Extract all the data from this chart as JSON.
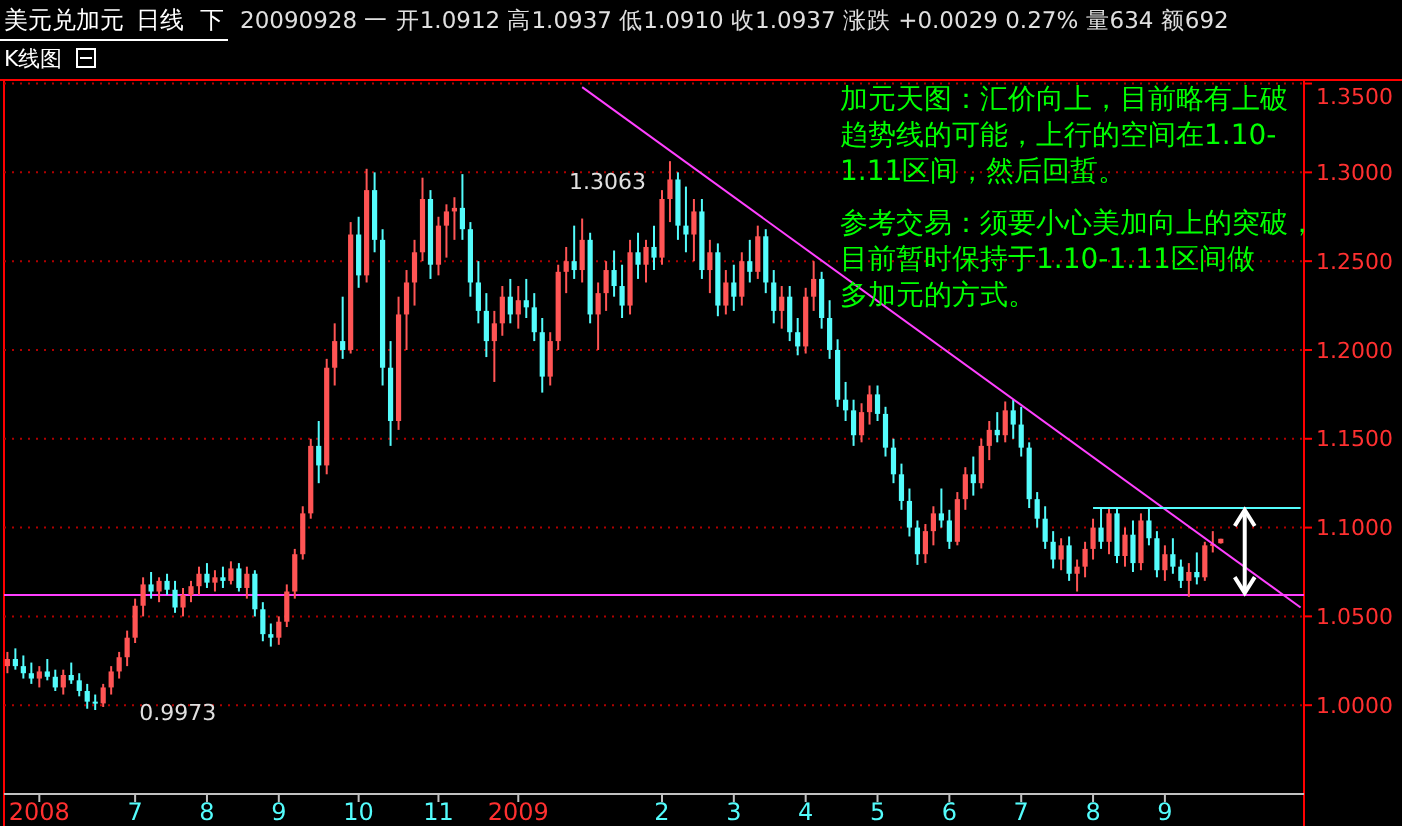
{
  "chart_data": {
    "type": "candlestick",
    "title": "美元兑加元",
    "subtitle": "日线",
    "annotations": [
      "下",
      "20090928 一 开1.0912 高1.0937 低1.0910 收1.0937 涨跌 +0.0029 0.27% 量634 额692",
      "K线图",
      "加元天图：汇价向上，目前略有上破趋势线的可能，上行的空间在1.10-1.11区间，然后回蜇。",
      "参考交易：须要小心美加向上的突破，目前暂时保持于1.10-1.11区间做多加元的方式。",
      "1.3063",
      "0.9973"
    ],
    "categories": [
      null,
      null,
      null,
      null,
      "2008",
      null,
      null,
      null,
      null,
      null,
      null,
      null,
      null,
      null,
      null,
      null,
      "7",
      null,
      null,
      null,
      null,
      null,
      null,
      null,
      null,
      "8",
      null,
      null,
      null,
      null,
      null,
      null,
      null,
      null,
      "9",
      null,
      null,
      null,
      null,
      null,
      null,
      null,
      null,
      null,
      "10",
      null,
      null,
      null,
      null,
      null,
      null,
      null,
      null,
      null,
      "11",
      null,
      null,
      null,
      null,
      null,
      null,
      null,
      null,
      null,
      "2009",
      null,
      null,
      null,
      null,
      null,
      null,
      null,
      null,
      null,
      null,
      null,
      null,
      null,
      null,
      null,
      null,
      null,
      "2",
      null,
      null,
      null,
      null,
      null,
      null,
      null,
      null,
      "3",
      null,
      null,
      null,
      null,
      null,
      null,
      null,
      null,
      "4",
      null,
      null,
      null,
      null,
      null,
      null,
      null,
      null,
      "5",
      null,
      null,
      null,
      null,
      null,
      null,
      null,
      null,
      "6",
      null,
      null,
      null,
      null,
      null,
      null,
      null,
      null,
      "7",
      null,
      null,
      null,
      null,
      null,
      null,
      null,
      null,
      "8",
      null,
      null,
      null,
      null,
      null,
      null,
      null,
      null,
      "9",
      null,
      null,
      null,
      null,
      null,
      null,
      null,
      null,
      null,
      null,
      null,
      null,
      null,
      null,
      null,
      null,
      null
    ],
    "ohlc": [
      [
        1.022,
        1.03,
        1.018,
        1.026
      ],
      [
        1.026,
        1.032,
        1.02,
        1.022
      ],
      [
        1.022,
        1.028,
        1.015,
        1.018
      ],
      [
        1.018,
        1.024,
        1.012,
        1.015
      ],
      [
        1.015,
        1.022,
        1.01,
        1.019
      ],
      [
        1.019,
        1.026,
        1.014,
        1.016
      ],
      [
        1.016,
        1.02,
        1.008,
        1.01
      ],
      [
        1.01,
        1.02,
        1.006,
        1.017
      ],
      [
        1.017,
        1.024,
        1.012,
        1.014
      ],
      [
        1.014,
        1.018,
        1.005,
        1.008
      ],
      [
        1.008,
        1.012,
        0.998,
        1.002
      ],
      [
        1.002,
        1.006,
        0.9973,
        1.001
      ],
      [
        1.001,
        1.012,
        0.999,
        1.01
      ],
      [
        1.01,
        1.022,
        1.006,
        1.019
      ],
      [
        1.019,
        1.03,
        1.015,
        1.027
      ],
      [
        1.027,
        1.042,
        1.022,
        1.038
      ],
      [
        1.038,
        1.06,
        1.035,
        1.056
      ],
      [
        1.056,
        1.072,
        1.05,
        1.068
      ],
      [
        1.068,
        1.075,
        1.06,
        1.064
      ],
      [
        1.064,
        1.072,
        1.058,
        1.07
      ],
      [
        1.07,
        1.074,
        1.062,
        1.065
      ],
      [
        1.065,
        1.07,
        1.052,
        1.055
      ],
      [
        1.055,
        1.066,
        1.05,
        1.062
      ],
      [
        1.062,
        1.07,
        1.058,
        1.067
      ],
      [
        1.067,
        1.078,
        1.062,
        1.074
      ],
      [
        1.074,
        1.08,
        1.066,
        1.069
      ],
      [
        1.069,
        1.076,
        1.064,
        1.072
      ],
      [
        1.072,
        1.078,
        1.066,
        1.07
      ],
      [
        1.07,
        1.081,
        1.068,
        1.077
      ],
      [
        1.077,
        1.08,
        1.064,
        1.066
      ],
      [
        1.066,
        1.078,
        1.06,
        1.074
      ],
      [
        1.074,
        1.076,
        1.05,
        1.054
      ],
      [
        1.054,
        1.058,
        1.036,
        1.04
      ],
      [
        1.04,
        1.046,
        1.033,
        1.038
      ],
      [
        1.038,
        1.05,
        1.034,
        1.047
      ],
      [
        1.047,
        1.068,
        1.044,
        1.064
      ],
      [
        1.064,
        1.088,
        1.06,
        1.085
      ],
      [
        1.085,
        1.112,
        1.082,
        1.108
      ],
      [
        1.108,
        1.15,
        1.105,
        1.146
      ],
      [
        1.146,
        1.16,
        1.125,
        1.135
      ],
      [
        1.135,
        1.195,
        1.13,
        1.19
      ],
      [
        1.19,
        1.215,
        1.18,
        1.205
      ],
      [
        1.205,
        1.23,
        1.195,
        1.2
      ],
      [
        1.2,
        1.272,
        1.198,
        1.265
      ],
      [
        1.265,
        1.275,
        1.235,
        1.242
      ],
      [
        1.242,
        1.302,
        1.238,
        1.29
      ],
      [
        1.29,
        1.3,
        1.255,
        1.262
      ],
      [
        1.262,
        1.268,
        1.18,
        1.19
      ],
      [
        1.19,
        1.205,
        1.146,
        1.16
      ],
      [
        1.16,
        1.23,
        1.155,
        1.22
      ],
      [
        1.22,
        1.245,
        1.2,
        1.238
      ],
      [
        1.238,
        1.262,
        1.225,
        1.255
      ],
      [
        1.255,
        1.297,
        1.25,
        1.285
      ],
      [
        1.285,
        1.29,
        1.24,
        1.248
      ],
      [
        1.248,
        1.275,
        1.242,
        1.27
      ],
      [
        1.27,
        1.282,
        1.252,
        1.278
      ],
      [
        1.278,
        1.286,
        1.262,
        1.28
      ],
      [
        1.28,
        1.299,
        1.262,
        1.268
      ],
      [
        1.268,
        1.272,
        1.23,
        1.238
      ],
      [
        1.238,
        1.25,
        1.215,
        1.222
      ],
      [
        1.222,
        1.232,
        1.196,
        1.205
      ],
      [
        1.205,
        1.222,
        1.182,
        1.215
      ],
      [
        1.215,
        1.236,
        1.208,
        1.23
      ],
      [
        1.23,
        1.24,
        1.215,
        1.22
      ],
      [
        1.22,
        1.236,
        1.212,
        1.228
      ],
      [
        1.228,
        1.24,
        1.218,
        1.224
      ],
      [
        1.224,
        1.232,
        1.205,
        1.21
      ],
      [
        1.21,
        1.218,
        1.176,
        1.185
      ],
      [
        1.185,
        1.21,
        1.18,
        1.205
      ],
      [
        1.205,
        1.248,
        1.2,
        1.244
      ],
      [
        1.244,
        1.258,
        1.232,
        1.25
      ],
      [
        1.25,
        1.27,
        1.24,
        1.245
      ],
      [
        1.245,
        1.274,
        1.238,
        1.262
      ],
      [
        1.262,
        1.266,
        1.215,
        1.22
      ],
      [
        1.22,
        1.238,
        1.2,
        1.232
      ],
      [
        1.232,
        1.25,
        1.222,
        1.245
      ],
      [
        1.245,
        1.256,
        1.23,
        1.236
      ],
      [
        1.236,
        1.248,
        1.218,
        1.225
      ],
      [
        1.225,
        1.262,
        1.22,
        1.255
      ],
      [
        1.255,
        1.266,
        1.24,
        1.248
      ],
      [
        1.248,
        1.262,
        1.238,
        1.258
      ],
      [
        1.258,
        1.27,
        1.245,
        1.252
      ],
      [
        1.252,
        1.29,
        1.248,
        1.285
      ],
      [
        1.285,
        1.3063,
        1.272,
        1.296
      ],
      [
        1.296,
        1.3,
        1.262,
        1.27
      ],
      [
        1.27,
        1.292,
        1.255,
        1.265
      ],
      [
        1.265,
        1.285,
        1.25,
        1.278
      ],
      [
        1.278,
        1.285,
        1.24,
        1.245
      ],
      [
        1.245,
        1.262,
        1.232,
        1.255
      ],
      [
        1.255,
        1.26,
        1.219,
        1.225
      ],
      [
        1.225,
        1.245,
        1.22,
        1.238
      ],
      [
        1.238,
        1.248,
        1.222,
        1.23
      ],
      [
        1.23,
        1.255,
        1.225,
        1.25
      ],
      [
        1.25,
        1.262,
        1.238,
        1.244
      ],
      [
        1.244,
        1.27,
        1.24,
        1.264
      ],
      [
        1.264,
        1.268,
        1.232,
        1.238
      ],
      [
        1.238,
        1.245,
        1.215,
        1.222
      ],
      [
        1.222,
        1.236,
        1.212,
        1.23
      ],
      [
        1.23,
        1.236,
        1.205,
        1.21
      ],
      [
        1.21,
        1.218,
        1.197,
        1.202
      ],
      [
        1.202,
        1.235,
        1.198,
        1.23
      ],
      [
        1.23,
        1.25,
        1.222,
        1.24
      ],
      [
        1.24,
        1.244,
        1.212,
        1.218
      ],
      [
        1.218,
        1.228,
        1.195,
        1.2
      ],
      [
        1.2,
        1.206,
        1.168,
        1.172
      ],
      [
        1.172,
        1.182,
        1.16,
        1.166
      ],
      [
        1.166,
        1.172,
        1.146,
        1.152
      ],
      [
        1.152,
        1.17,
        1.148,
        1.165
      ],
      [
        1.165,
        1.18,
        1.158,
        1.175
      ],
      [
        1.175,
        1.18,
        1.16,
        1.164
      ],
      [
        1.164,
        1.168,
        1.14,
        1.145
      ],
      [
        1.145,
        1.15,
        1.125,
        1.13
      ],
      [
        1.13,
        1.136,
        1.11,
        1.115
      ],
      [
        1.115,
        1.122,
        1.095,
        1.1
      ],
      [
        1.1,
        1.104,
        1.079,
        1.085
      ],
      [
        1.085,
        1.102,
        1.08,
        1.098
      ],
      [
        1.098,
        1.112,
        1.09,
        1.108
      ],
      [
        1.108,
        1.122,
        1.1,
        1.104
      ],
      [
        1.104,
        1.11,
        1.088,
        1.092
      ],
      [
        1.092,
        1.12,
        1.09,
        1.116
      ],
      [
        1.116,
        1.134,
        1.11,
        1.13
      ],
      [
        1.13,
        1.14,
        1.118,
        1.125
      ],
      [
        1.125,
        1.15,
        1.122,
        1.146
      ],
      [
        1.146,
        1.16,
        1.138,
        1.155
      ],
      [
        1.155,
        1.165,
        1.148,
        1.152
      ],
      [
        1.152,
        1.171,
        1.148,
        1.166
      ],
      [
        1.166,
        1.172,
        1.15,
        1.158
      ],
      [
        1.158,
        1.168,
        1.14,
        1.145
      ],
      [
        1.145,
        1.148,
        1.111,
        1.116
      ],
      [
        1.116,
        1.12,
        1.1,
        1.105
      ],
      [
        1.105,
        1.112,
        1.088,
        1.092
      ],
      [
        1.092,
        1.098,
        1.077,
        1.082
      ],
      [
        1.082,
        1.094,
        1.076,
        1.09
      ],
      [
        1.09,
        1.095,
        1.07,
        1.074
      ],
      [
        1.074,
        1.082,
        1.064,
        1.078
      ],
      [
        1.078,
        1.092,
        1.072,
        1.088
      ],
      [
        1.088,
        1.105,
        1.082,
        1.1
      ],
      [
        1.1,
        1.111,
        1.088,
        1.092
      ],
      [
        1.092,
        1.111,
        1.085,
        1.108
      ],
      [
        1.108,
        1.111,
        1.08,
        1.084
      ],
      [
        1.084,
        1.1,
        1.078,
        1.096
      ],
      [
        1.096,
        1.104,
        1.075,
        1.08
      ],
      [
        1.08,
        1.108,
        1.076,
        1.104
      ],
      [
        1.104,
        1.111,
        1.09,
        1.094
      ],
      [
        1.094,
        1.098,
        1.072,
        1.076
      ],
      [
        1.076,
        1.09,
        1.07,
        1.085
      ],
      [
        1.085,
        1.094,
        1.074,
        1.078
      ],
      [
        1.078,
        1.082,
        1.066,
        1.07
      ],
      [
        1.07,
        1.08,
        1.061,
        1.075
      ],
      [
        1.075,
        1.086,
        1.068,
        1.072
      ],
      [
        1.072,
        1.092,
        1.07,
        1.09
      ],
      [
        1.09,
        1.098,
        1.086,
        1.0908
      ],
      [
        1.0912,
        1.0937,
        1.091,
        1.0937
      ],
      null,
      null,
      null,
      null,
      null,
      null,
      null,
      null,
      null,
      null
    ],
    "series": [
      {
        "type": "line",
        "color": "#ff40ff",
        "values": [
          null,
          null,
          null,
          null,
          null,
          null,
          null,
          null,
          null,
          null,
          null,
          null,
          null,
          null,
          null,
          null,
          null,
          null,
          null,
          null,
          null,
          null,
          null,
          null,
          null,
          null,
          null,
          null,
          null,
          null,
          null,
          null,
          null,
          null,
          null,
          null,
          null,
          null,
          null,
          null,
          null,
          null,
          null,
          null,
          null,
          null,
          null,
          null,
          null,
          null,
          null,
          null,
          null,
          null,
          null,
          null,
          null,
          null,
          null,
          null,
          null,
          null,
          null,
          null,
          null,
          null,
          null,
          null,
          null,
          null,
          null,
          null,
          1.348,
          null,
          null,
          null,
          null,
          null,
          null,
          null,
          null,
          null,
          null,
          null,
          null,
          null,
          null,
          null,
          null,
          null,
          null,
          null,
          null,
          null,
          null,
          null,
          null,
          null,
          null,
          null,
          null,
          null,
          null,
          null,
          null,
          null,
          null,
          null,
          null,
          null,
          null,
          null,
          null,
          null,
          null,
          null,
          null,
          null,
          null,
          null,
          null,
          null,
          null,
          null,
          null,
          null,
          null,
          null,
          null,
          null,
          null,
          null,
          null,
          null,
          null,
          null,
          null,
          null,
          null,
          null,
          null,
          null,
          null,
          null,
          null,
          null,
          null,
          null,
          null,
          null,
          null,
          null,
          null,
          null,
          null,
          null,
          null,
          null,
          null,
          null,
          null,
          null,
          1.055
        ]
      },
      {
        "type": "line",
        "color": "#54fcfc",
        "values": [
          null,
          null,
          null,
          null,
          null,
          null,
          null,
          null,
          null,
          null,
          null,
          null,
          null,
          null,
          null,
          null,
          null,
          null,
          null,
          null,
          null,
          null,
          null,
          null,
          null,
          null,
          null,
          null,
          null,
          null,
          null,
          null,
          null,
          null,
          null,
          null,
          null,
          null,
          null,
          null,
          null,
          null,
          null,
          null,
          null,
          null,
          null,
          null,
          null,
          null,
          null,
          null,
          null,
          null,
          null,
          null,
          null,
          null,
          null,
          null,
          null,
          null,
          null,
          null,
          null,
          null,
          null,
          null,
          null,
          null,
          null,
          null,
          null,
          null,
          null,
          null,
          null,
          null,
          null,
          null,
          null,
          null,
          null,
          null,
          null,
          null,
          null,
          null,
          null,
          null,
          null,
          null,
          null,
          null,
          null,
          null,
          null,
          null,
          null,
          null,
          null,
          null,
          null,
          null,
          null,
          null,
          null,
          null,
          null,
          null,
          null,
          null,
          null,
          null,
          null,
          null,
          null,
          null,
          null,
          null,
          null,
          null,
          null,
          null,
          null,
          null,
          null,
          null,
          null,
          null,
          null,
          null,
          null,
          null,
          null,
          null,
          1.111,
          null,
          null,
          null,
          null,
          null,
          null,
          null,
          null,
          null,
          null,
          null,
          null,
          null,
          null,
          null,
          null,
          null,
          null,
          null,
          null,
          null,
          null,
          null,
          null,
          null,
          1.111
        ]
      }
    ],
    "ref_lines": [
      {
        "axis": "y",
        "value": 1.062,
        "color": "#ff40ff"
      }
    ],
    "ylim": [
      0.95,
      1.352
    ],
    "yticks": [
      {
        "value": 1,
        "label": "1.0000"
      },
      {
        "value": 1.05,
        "label": "1.0500"
      },
      {
        "value": 1.1,
        "label": "1.1000"
      },
      {
        "value": 1.15,
        "label": "1.1500"
      },
      {
        "value": 1.2,
        "label": "1.2000"
      },
      {
        "value": 1.25,
        "label": "1.2500"
      },
      {
        "value": 1.3,
        "label": "1.3000"
      },
      {
        "value": 1.35,
        "label": "1.3500"
      }
    ],
    "grid": "y"
  }
}
